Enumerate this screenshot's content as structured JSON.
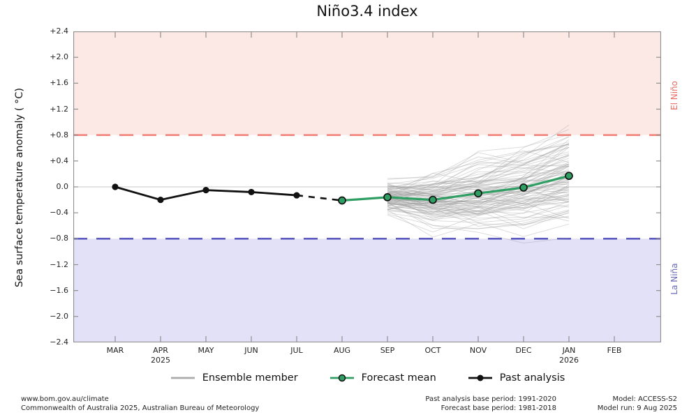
{
  "title": "Niño3.4 index",
  "y_axis": {
    "label": "Sea surface temperature anomaly ( °C)",
    "tick_labels": [
      "+2.4",
      "+2.0",
      "+1.6",
      "+1.2",
      "+0.8",
      "+0.4",
      "0.0",
      "−0.4",
      "−0.8",
      "−1.2",
      "−1.6",
      "−2.0",
      "−2.4"
    ],
    "tick_values": [
      2.4,
      2.0,
      1.6,
      1.2,
      0.8,
      0.4,
      0.0,
      -0.4,
      -0.8,
      -1.2,
      -1.6,
      -2.0,
      -2.4
    ]
  },
  "x_axis": {
    "months": [
      "MAR",
      "APR",
      "MAY",
      "JUN",
      "JUL",
      "AUG",
      "SEP",
      "OCT",
      "NOV",
      "DEC",
      "JAN",
      "FEB"
    ],
    "years": {
      "APR": "2025",
      "JAN": "2026"
    }
  },
  "regions": {
    "el_nino": "El Niño",
    "la_nina": "La Niña"
  },
  "legend": {
    "items": [
      {
        "label": "Ensemble member",
        "swatch": "gray-line"
      },
      {
        "label": "Forecast mean",
        "swatch": "green-line-circle-marker"
      },
      {
        "label": "Past analysis",
        "swatch": "black-line-circle-marker"
      }
    ]
  },
  "footer": {
    "left_line1": "www.bom.gov.au/climate",
    "left_line2": "Commonwealth of Australia 2025, Australian Bureau of Meteorology",
    "mid_line1": "Past analysis base period: 1991-2020",
    "mid_line2": "Forecast base period: 1981-2018",
    "right_line1": "Model: ACCESS-S2",
    "right_line2": "Model run: 9 Aug 2025"
  },
  "colors": {
    "el_nino_band": "#fce9e6",
    "la_nina_band": "#e2e1f8",
    "el_nino_line": "#f2837b",
    "la_nina_line": "#5b5bc0",
    "el_nino_text": "#e66a60",
    "la_nina_text": "#6a6ab8",
    "forecast_green": "#2f9e62",
    "past_black": "#111111",
    "ensemble_gray": "#9a9a9a",
    "axis": "#8f8f8f",
    "zero_line": "#c9c9c9",
    "text": "#222222"
  },
  "chart_data": {
    "type": "line",
    "title": "Niño3.4 index",
    "xlabel": "",
    "ylabel": "Sea surface temperature anomaly ( °C)",
    "ylim": [
      -2.4,
      2.4
    ],
    "ytick_step": 0.4,
    "grid": "zero-line-only",
    "legend_position": "below",
    "categories": [
      "MAR",
      "APR",
      "MAY",
      "JUN",
      "JUL",
      "AUG",
      "SEP",
      "OCT",
      "NOV",
      "DEC",
      "JAN",
      "FEB"
    ],
    "series": [
      {
        "name": "Past analysis",
        "months": [
          "MAR",
          "APR",
          "MAY",
          "JUN",
          "JUL"
        ],
        "values": [
          0.0,
          -0.2,
          -0.05,
          -0.08,
          -0.13
        ]
      },
      {
        "name": "Forecast mean",
        "months": [
          "AUG",
          "SEP",
          "OCT",
          "NOV",
          "DEC",
          "JAN"
        ],
        "values": [
          -0.21,
          -0.16,
          -0.2,
          -0.1,
          -0.01,
          0.17
        ]
      }
    ],
    "connector": {
      "style": "dashed-black",
      "from": {
        "month": "JUL",
        "value": -0.13
      },
      "to": {
        "month": "AUG",
        "value": -0.21
      }
    },
    "ensemble": {
      "name": "Ensemble member",
      "months": [
        "SEP",
        "OCT",
        "NOV",
        "DEC",
        "JAN"
      ],
      "count": 99,
      "mean_path": [
        -0.16,
        -0.2,
        -0.1,
        -0.01,
        0.17
      ],
      "start_sd": 0.14,
      "step_sd": 0.16,
      "drift_sd": 0.05,
      "approx_range_sep": [
        -0.5,
        0.3
      ],
      "approx_range_jan": [
        -0.6,
        1.1
      ],
      "seed": 7
    },
    "thresholds": [
      {
        "label": "El Niño",
        "value": 0.8
      },
      {
        "label": "La Niña",
        "value": -0.8
      }
    ]
  }
}
